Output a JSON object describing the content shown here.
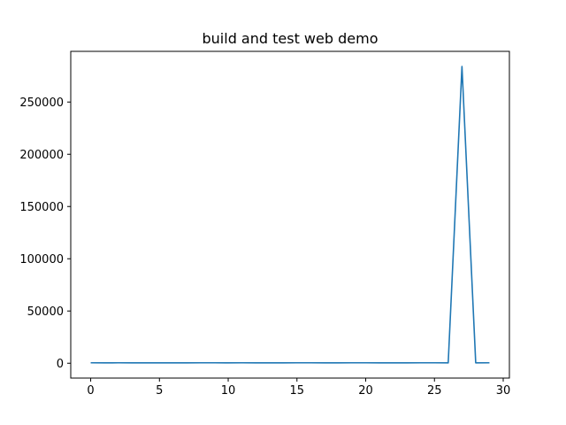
{
  "chart_data": {
    "type": "line",
    "title": "build and test web demo",
    "xlabel": "",
    "ylabel": "",
    "xlim": [
      -1.45,
      30.45
    ],
    "ylim": [
      -14200,
      298500
    ],
    "x_ticks": [
      0,
      5,
      10,
      15,
      20,
      25,
      30
    ],
    "y_ticks": [
      0,
      50000,
      100000,
      150000,
      200000,
      250000
    ],
    "grid": false,
    "legend": "none",
    "series": [
      {
        "color": "#1f77b4",
        "x": [
          0,
          1,
          2,
          3,
          4,
          5,
          6,
          7,
          8,
          9,
          10,
          11,
          12,
          13,
          14,
          15,
          16,
          17,
          18,
          19,
          20,
          21,
          22,
          23,
          24,
          25,
          26,
          27,
          28,
          29
        ],
        "values": [
          420,
          380,
          410,
          390,
          370,
          400,
          360,
          380,
          420,
          410,
          380,
          420,
          400,
          390,
          380,
          410,
          420,
          380,
          400,
          420,
          410,
          390,
          380,
          400,
          420,
          410,
          380,
          284000,
          400,
          410
        ]
      }
    ]
  }
}
